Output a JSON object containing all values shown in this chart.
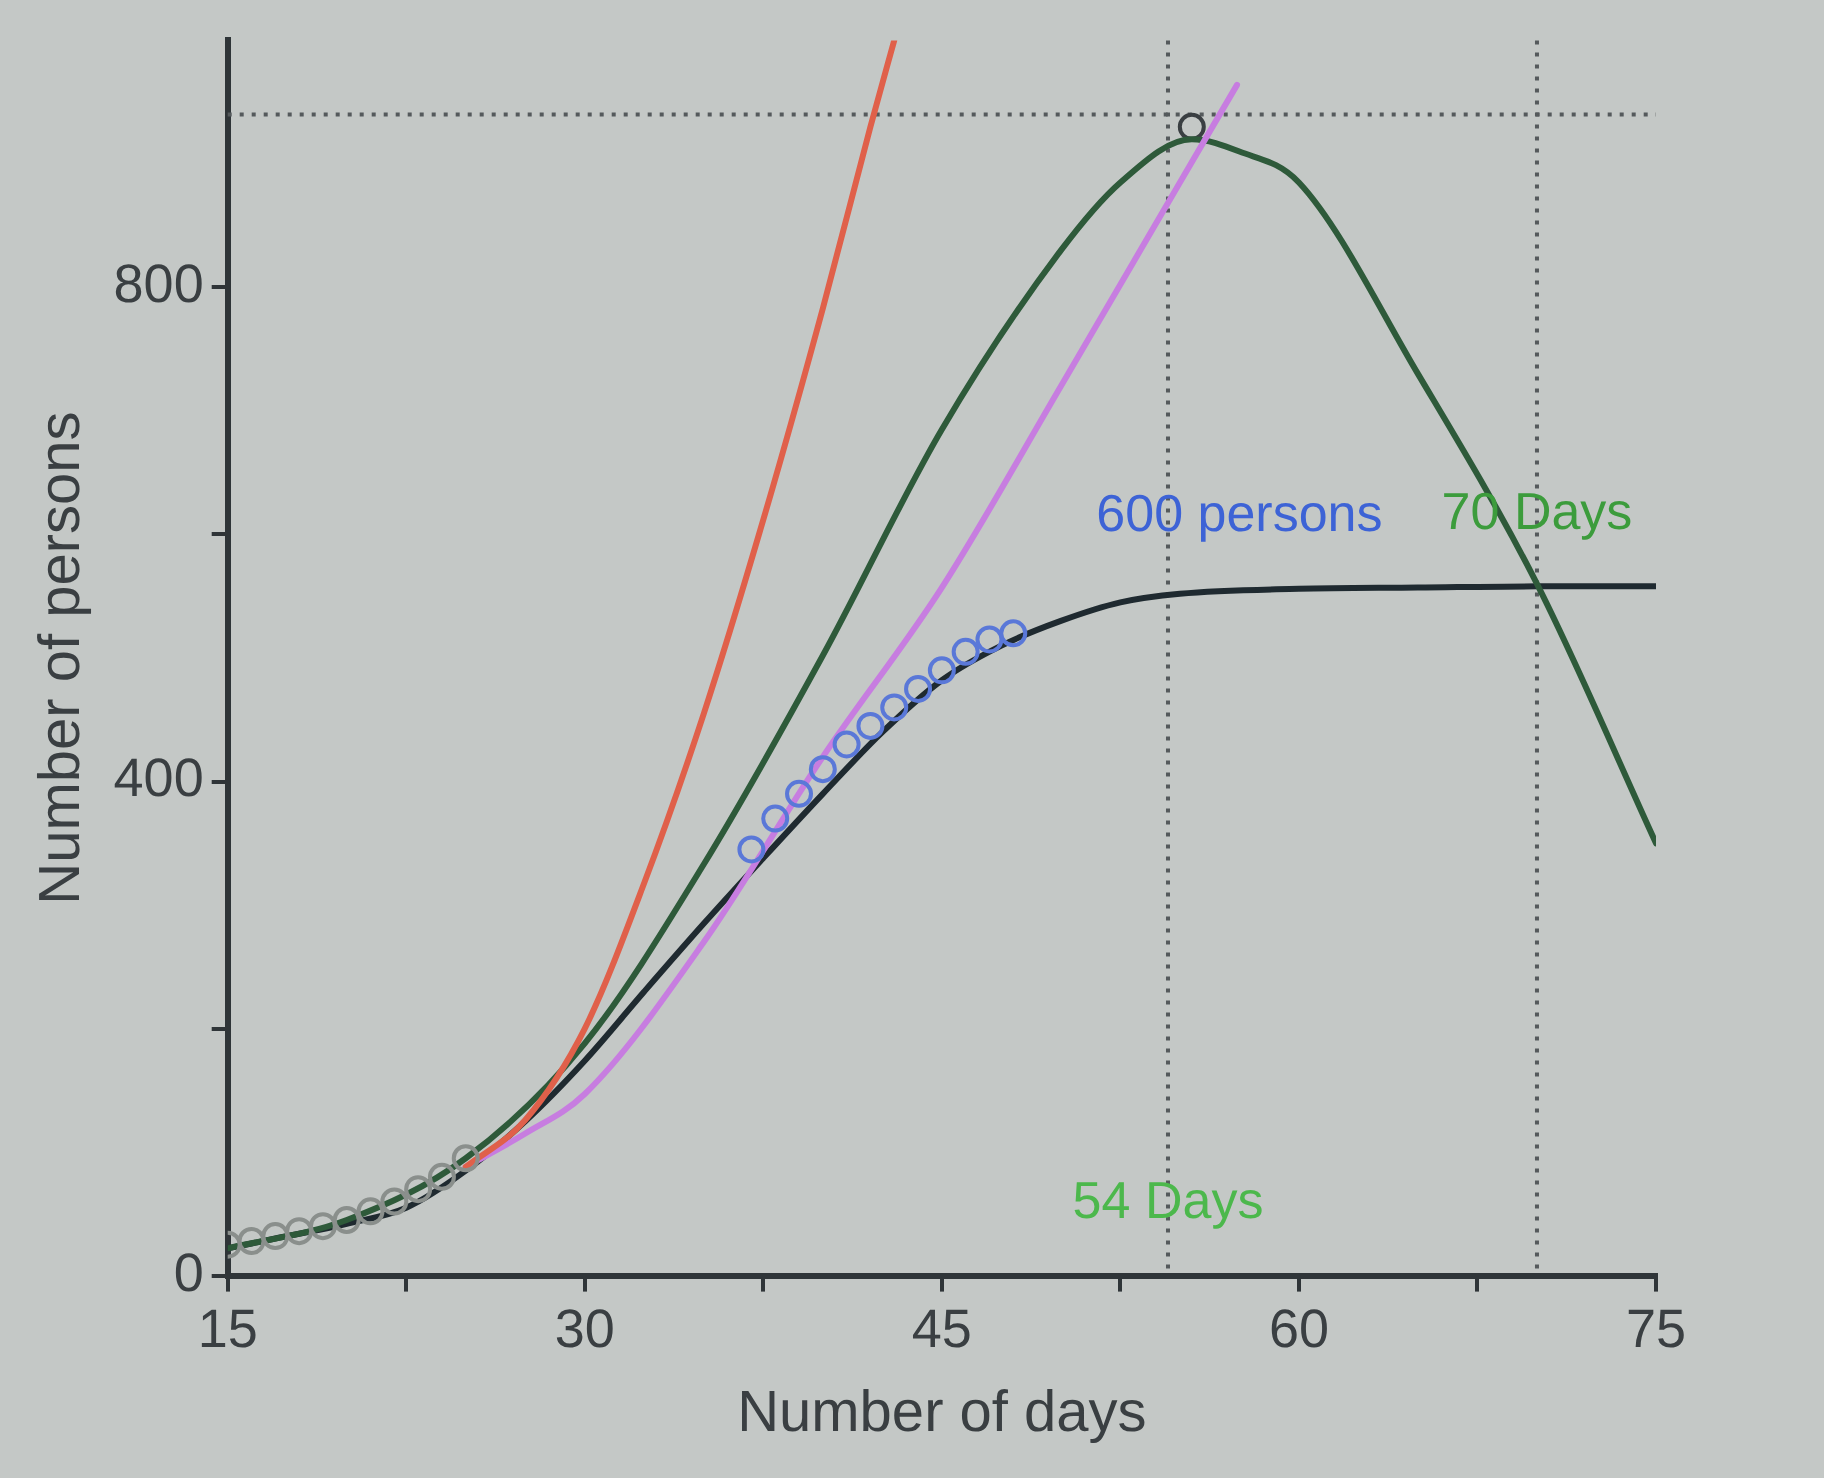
{
  "chart_data": {
    "type": "line",
    "xlabel": "Number of days",
    "ylabel": "Number of persons",
    "xlim": [
      15,
      75
    ],
    "ylim": [
      0,
      1000
    ],
    "xticks": [
      15,
      {
        "value": 22.5,
        "label": null
      },
      30,
      {
        "value": 37.5,
        "label": null
      },
      45,
      {
        "value": 52.5,
        "label": null
      },
      60,
      {
        "value": 67.5,
        "label": null
      },
      75
    ],
    "yticks": [
      0,
      {
        "value": 200,
        "label": null
      },
      400,
      {
        "value": 600,
        "label": null
      },
      800
    ],
    "grid": false,
    "legend": false,
    "series": [
      {
        "type": "scatter",
        "marker": "circle",
        "color": "#8a8f8c",
        "x": [
          15,
          16,
          17,
          18,
          19,
          20,
          21,
          22,
          23,
          24,
          25
        ],
        "values": [
          25,
          28,
          32,
          36,
          40,
          45,
          52,
          60,
          70,
          80,
          95
        ]
      },
      {
        "type": "scatter",
        "marker": "circle",
        "color": "#5a78d8",
        "x": [
          37,
          38,
          39,
          40,
          41,
          42,
          43,
          44,
          45,
          46,
          47,
          48
        ],
        "values": [
          345,
          370,
          390,
          410,
          430,
          445,
          460,
          475,
          490,
          505,
          515,
          520
        ]
      },
      {
        "marker": "none",
        "color": "#e0604a",
        "x": [
          25,
          27.5,
          30,
          32.5,
          35,
          37.5,
          40,
          42,
          43
        ],
        "values": [
          88,
          126,
          200,
          318,
          455,
          612,
          783,
          930,
          1000
        ]
      },
      {
        "marker": "none",
        "color": "#c77de0",
        "x": [
          25,
          27.5,
          30,
          35,
          40,
          45,
          50,
          55,
          57.4
        ],
        "values": [
          88,
          115,
          147,
          270,
          420,
          557,
          720,
          885,
          964
        ]
      },
      {
        "marker": "none",
        "color": "#2e5a3a",
        "x": [
          15,
          20,
          25,
          30,
          35,
          40,
          45,
          50,
          52.5,
          55.5,
          57.5,
          60,
          65,
          70,
          75
        ],
        "values": [
          22,
          45,
          95,
          188,
          333,
          502,
          685,
          830,
          885,
          920,
          910,
          885,
          730,
          560,
          350
        ]
      },
      {
        "marker": "none",
        "color": "#1f2a30",
        "x": [
          15,
          17,
          20,
          22.5,
          25,
          27.5,
          30,
          32.5,
          35,
          37.5,
          40,
          42.5,
          45,
          47.5,
          50,
          52.5,
          55,
          60,
          65,
          70,
          75
        ],
        "values": [
          22,
          30,
          42,
          55,
          85,
          125,
          174,
          230,
          285,
          338,
          390,
          440,
          482,
          510,
          530,
          545,
          552,
          556,
          557,
          558,
          558
        ]
      },
      {
        "type": "scatter",
        "marker": "circle",
        "color": "#3a3f42",
        "x": [
          55.5
        ],
        "values": [
          930
        ]
      }
    ],
    "ref_lines": [
      {
        "axis": "y",
        "value": 940,
        "color": "#555a5c",
        "line_style": "dotted"
      },
      {
        "axis": "x",
        "value": 54.5,
        "color": "#555a5c",
        "line_style": "dotted"
      },
      {
        "axis": "x",
        "value": 70,
        "color": "#555a5c",
        "line_style": "dotted"
      }
    ],
    "annotations": [
      {
        "text": "600 persons",
        "x": 57.5,
        "y": 556
      },
      {
        "text": "70 Days",
        "x": 70,
        "y": 558
      },
      {
        "text": "54 Days",
        "x": 54.5,
        "y": 0
      }
    ]
  }
}
